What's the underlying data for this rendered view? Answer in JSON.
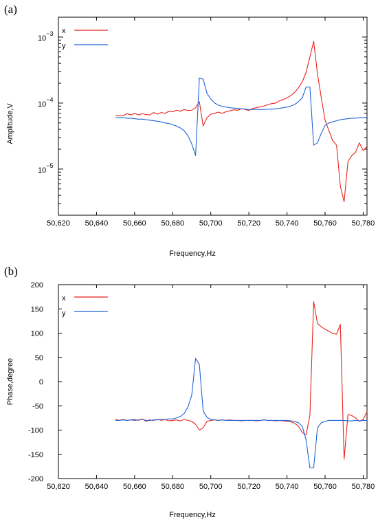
{
  "panels": [
    {
      "label": "(a)"
    },
    {
      "label": "(b)"
    }
  ],
  "chart_data": [
    {
      "type": "line",
      "panel": "(a)",
      "title": "",
      "xlabel": "Frequency,Hz",
      "ylabel": "Amplitude,V",
      "xlim": [
        50620,
        50782
      ],
      "ylim": [
        2e-06,
        0.002
      ],
      "yscale": "log",
      "grid": false,
      "legend": "top-left",
      "xticks": [
        {
          "v": 50620,
          "label": "50,620"
        },
        {
          "v": 50640,
          "label": "50,640"
        },
        {
          "v": 50660,
          "label": "50,660"
        },
        {
          "v": 50680,
          "label": "50,680"
        },
        {
          "v": 50700,
          "label": "50,700"
        },
        {
          "v": 50720,
          "label": "50,720"
        },
        {
          "v": 50740,
          "label": "50,740"
        },
        {
          "v": 50760,
          "label": "50,760"
        },
        {
          "v": 50780,
          "label": "50,780"
        }
      ],
      "yticks": [
        {
          "v": 1e-05,
          "base": "10",
          "exp": "−5"
        },
        {
          "v": 0.0001,
          "base": "10",
          "exp": "−4"
        },
        {
          "v": 0.001,
          "base": "10",
          "exp": "−3"
        }
      ],
      "series": [
        {
          "name": "x",
          "color": "#e8221b",
          "x": [
            50650,
            50652,
            50654,
            50656,
            50658,
            50660,
            50662,
            50664,
            50666,
            50668,
            50670,
            50672,
            50674,
            50676,
            50678,
            50680,
            50682,
            50684,
            50686,
            50688,
            50690,
            50692,
            50694,
            50696,
            50698,
            50700,
            50702,
            50704,
            50706,
            50708,
            50710,
            50712,
            50714,
            50716,
            50718,
            50720,
            50722,
            50724,
            50726,
            50728,
            50730,
            50732,
            50734,
            50736,
            50738,
            50740,
            50742,
            50744,
            50746,
            50748,
            50750,
            50752,
            50754,
            50756,
            50758,
            50760,
            50762,
            50764,
            50766,
            50768,
            50770,
            50772,
            50774,
            50776,
            50778,
            50780,
            50782
          ],
          "y": [
            6.5e-05,
            6.5e-05,
            6.4e-05,
            6.9e-05,
            6.6e-05,
            7e-05,
            6.6e-05,
            6.9e-05,
            6.7e-05,
            6.6e-05,
            7.2e-05,
            6.8e-05,
            7.2e-05,
            7e-05,
            7.5e-05,
            7.4e-05,
            7.8e-05,
            7.5e-05,
            8e-05,
            7.7e-05,
            7.8e-05,
            8.5e-05,
            0.000105,
            4.5e-05,
            6e-05,
            6.8e-05,
            7e-05,
            7.3e-05,
            7e-05,
            7.4e-05,
            7.6e-05,
            7.9e-05,
            7.8e-05,
            8.2e-05,
            8e-05,
            7.7e-05,
            8.3e-05,
            8.5e-05,
            8.8e-05,
            9e-05,
            9.5e-05,
            9.8e-05,
            0.0001,
            0.000108,
            0.000113,
            0.00012,
            0.00013,
            0.000145,
            0.00017,
            0.00021,
            0.00029,
            0.0005,
            0.00086,
            0.00028,
            0.00012,
            5.5e-05,
            3.8e-05,
            2.7e-05,
            2.3e-05,
            5.5e-06,
            3.2e-06,
            1.3e-05,
            1.6e-05,
            1.8e-05,
            2.5e-05,
            1.9e-05,
            2.2e-05
          ]
        },
        {
          "name": "y",
          "color": "#1f63d6",
          "x": [
            50650,
            50652,
            50654,
            50656,
            50658,
            50660,
            50662,
            50664,
            50666,
            50668,
            50670,
            50672,
            50674,
            50676,
            50678,
            50680,
            50682,
            50684,
            50686,
            50688,
            50690,
            50692,
            50694,
            50696,
            50698,
            50700,
            50702,
            50704,
            50706,
            50708,
            50710,
            50712,
            50714,
            50716,
            50718,
            50720,
            50722,
            50724,
            50726,
            50728,
            50730,
            50732,
            50734,
            50736,
            50738,
            50740,
            50742,
            50744,
            50746,
            50748,
            50750,
            50752,
            50754,
            50756,
            50758,
            50760,
            50762,
            50764,
            50766,
            50768,
            50770,
            50772,
            50774,
            50776,
            50778,
            50780,
            50782
          ],
          "y": [
            6e-05,
            6e-05,
            6e-05,
            5.9e-05,
            5.9e-05,
            5.8e-05,
            5.7e-05,
            5.7e-05,
            5.6e-05,
            5.5e-05,
            5.4e-05,
            5.3e-05,
            5.2e-05,
            5e-05,
            4.9e-05,
            4.7e-05,
            4.5e-05,
            4.2e-05,
            3.8e-05,
            3.2e-05,
            2.4e-05,
            1.6e-05,
            0.00024,
            0.00023,
            0.00014,
            0.000115,
            0.0001,
            9.3e-05,
            8.9e-05,
            8.7e-05,
            8.5e-05,
            8.4e-05,
            8.3e-05,
            8.2e-05,
            8.1e-05,
            8e-05,
            8e-05,
            8e-05,
            8e-05,
            8e-05,
            8.1e-05,
            8.1e-05,
            8.2e-05,
            8.3e-05,
            8.5e-05,
            8.7e-05,
            9e-05,
            9.5e-05,
            0.000105,
            0.00012,
            0.000175,
            0.000175,
            2.3e-05,
            2.5e-05,
            3.5e-05,
            4.6e-05,
            5e-05,
            5.2e-05,
            5.4e-05,
            5.6e-05,
            5.7e-05,
            5.8e-05,
            5.9e-05,
            5.9e-05,
            6e-05,
            6e-05,
            6e-05
          ]
        }
      ]
    },
    {
      "type": "line",
      "panel": "(b)",
      "title": "",
      "xlabel": "Frequency,Hz",
      "ylabel": "Phase,degree",
      "xlim": [
        50620,
        50782
      ],
      "ylim": [
        -200,
        200
      ],
      "yscale": "linear",
      "grid": false,
      "legend": "top-left",
      "xticks": [
        {
          "v": 50620,
          "label": "50,620"
        },
        {
          "v": 50640,
          "label": "50,640"
        },
        {
          "v": 50660,
          "label": "50,660"
        },
        {
          "v": 50680,
          "label": "50,680"
        },
        {
          "v": 50700,
          "label": "50,700"
        },
        {
          "v": 50720,
          "label": "50,720"
        },
        {
          "v": 50740,
          "label": "50,740"
        },
        {
          "v": 50760,
          "label": "50,760"
        },
        {
          "v": 50780,
          "label": "50,780"
        }
      ],
      "yticks": [
        {
          "v": 200,
          "label": "200"
        },
        {
          "v": 150,
          "label": "150"
        },
        {
          "v": 100,
          "label": "100"
        },
        {
          "v": 50,
          "label": "50"
        },
        {
          "v": 0,
          "label": "0"
        },
        {
          "v": -50,
          "label": "-50"
        },
        {
          "v": -100,
          "label": "-100"
        },
        {
          "v": -150,
          "label": "-150"
        },
        {
          "v": -200,
          "label": "-200"
        }
      ],
      "series": [
        {
          "name": "x",
          "color": "#e8221b",
          "x": [
            50650,
            50652,
            50654,
            50656,
            50658,
            50660,
            50662,
            50664,
            50666,
            50668,
            50670,
            50672,
            50674,
            50676,
            50678,
            50680,
            50682,
            50684,
            50686,
            50688,
            50690,
            50692,
            50694,
            50696,
            50698,
            50700,
            50702,
            50704,
            50706,
            50708,
            50710,
            50712,
            50714,
            50716,
            50718,
            50720,
            50722,
            50724,
            50726,
            50728,
            50730,
            50732,
            50734,
            50736,
            50738,
            50740,
            50742,
            50744,
            50746,
            50748,
            50750,
            50752,
            50754,
            50756,
            50758,
            50760,
            50762,
            50764,
            50766,
            50768,
            50770,
            50772,
            50774,
            50776,
            50778,
            50780,
            50782
          ],
          "y": [
            -78,
            -80,
            -78,
            -80,
            -79,
            -78,
            -80,
            -77,
            -82,
            -79,
            -80,
            -78,
            -80,
            -78,
            -81,
            -80,
            -79,
            -81,
            -78,
            -80,
            -82,
            -88,
            -100,
            -95,
            -82,
            -80,
            -79,
            -80,
            -79,
            -80,
            -79,
            -80,
            -80,
            -81,
            -80,
            -80,
            -80,
            -81,
            -80,
            -79,
            -80,
            -80,
            -81,
            -80,
            -81,
            -82,
            -83,
            -86,
            -92,
            -105,
            -110,
            -70,
            165,
            120,
            113,
            108,
            104,
            99,
            98,
            118,
            -160,
            -68,
            -70,
            -75,
            -82,
            -78,
            -62
          ]
        },
        {
          "name": "y",
          "color": "#1f63d6",
          "x": [
            50650,
            50652,
            50654,
            50656,
            50658,
            50660,
            50662,
            50664,
            50666,
            50668,
            50670,
            50672,
            50674,
            50676,
            50678,
            50680,
            50682,
            50684,
            50686,
            50688,
            50690,
            50692,
            50694,
            50696,
            50698,
            50700,
            50702,
            50704,
            50706,
            50708,
            50710,
            50712,
            50714,
            50716,
            50718,
            50720,
            50722,
            50724,
            50726,
            50728,
            50730,
            50732,
            50734,
            50736,
            50738,
            50740,
            50742,
            50744,
            50746,
            50748,
            50750,
            50752,
            50754,
            50756,
            50758,
            50760,
            50762,
            50764,
            50766,
            50768,
            50770,
            50772,
            50774,
            50776,
            50778,
            50780,
            50782
          ],
          "y": [
            -80,
            -80,
            -79,
            -80,
            -79,
            -80,
            -79,
            -78,
            -80,
            -80,
            -79,
            -79,
            -78,
            -78,
            -77,
            -77,
            -75,
            -72,
            -66,
            -52,
            -28,
            48,
            35,
            -60,
            -74,
            -78,
            -79,
            -80,
            -79,
            -80,
            -80,
            -80,
            -80,
            -80,
            -80,
            -80,
            -80,
            -80,
            -80,
            -79,
            -80,
            -80,
            -80,
            -80,
            -80,
            -80,
            -81,
            -82,
            -85,
            -92,
            -120,
            -178,
            -178,
            -95,
            -85,
            -82,
            -80,
            -80,
            -80,
            -80,
            -80,
            -81,
            -81,
            -80,
            -81,
            -80,
            -80
          ]
        }
      ]
    }
  ]
}
